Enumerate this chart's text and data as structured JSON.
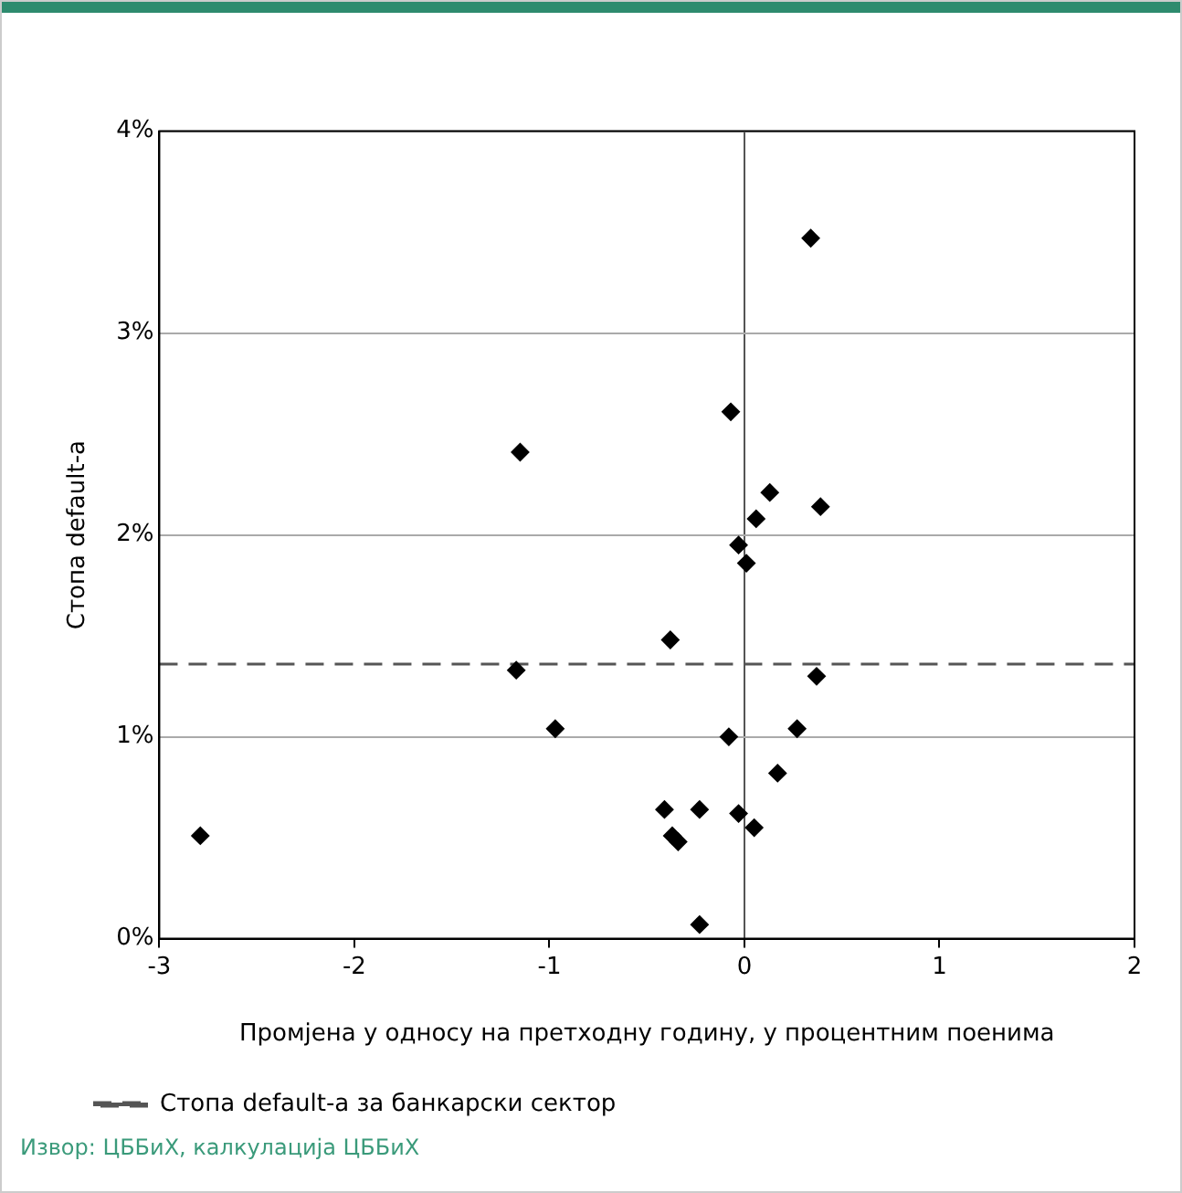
{
  "chart_data": {
    "type": "scatter",
    "xlabel": "Промјена у односу на претходну годину, у процентним поенима",
    "ylabel": "Стопа default-a",
    "x": [
      -2.79,
      -1.15,
      -1.17,
      -0.97,
      -0.38,
      -0.41,
      -0.37,
      -0.34,
      -0.23,
      -0.23,
      -0.07,
      -0.08,
      -0.03,
      0.01,
      -0.03,
      0.05,
      0.06,
      0.13,
      0.39,
      0.34,
      0.37,
      0.27,
      0.17
    ],
    "series": [
      {
        "color": "#000000",
        "values": [
          0.51,
          2.41,
          1.33,
          1.04,
          1.48,
          0.64,
          0.51,
          0.48,
          0.64,
          0.07,
          2.61,
          1.0,
          1.95,
          1.86,
          0.62,
          0.55,
          2.08,
          2.21,
          2.14,
          3.47,
          1.3,
          1.04,
          0.82
        ]
      }
    ],
    "xlim": [
      -3,
      2
    ],
    "xticks": [
      -3,
      -2,
      -1,
      0,
      1,
      2
    ],
    "ylim": [
      0,
      4
    ],
    "yticks": [
      {
        "value": 0,
        "label": "0%"
      },
      {
        "value": 1,
        "label": "1%"
      },
      {
        "value": 2,
        "label": "2%"
      },
      {
        "value": 3,
        "label": "3%"
      },
      {
        "value": 4,
        "label": "4%"
      }
    ],
    "ref_lines": [
      {
        "axis": "y",
        "value": 1.36,
        "label": "Стопа default-a за банкарски сектор",
        "color": "#555555",
        "line_style": "dashed"
      }
    ],
    "grid": "y",
    "legend": "bottom",
    "marker": "diamond",
    "annotations": [
      "Извор: ЦББиХ, калкулација ЦББиХ"
    ]
  }
}
